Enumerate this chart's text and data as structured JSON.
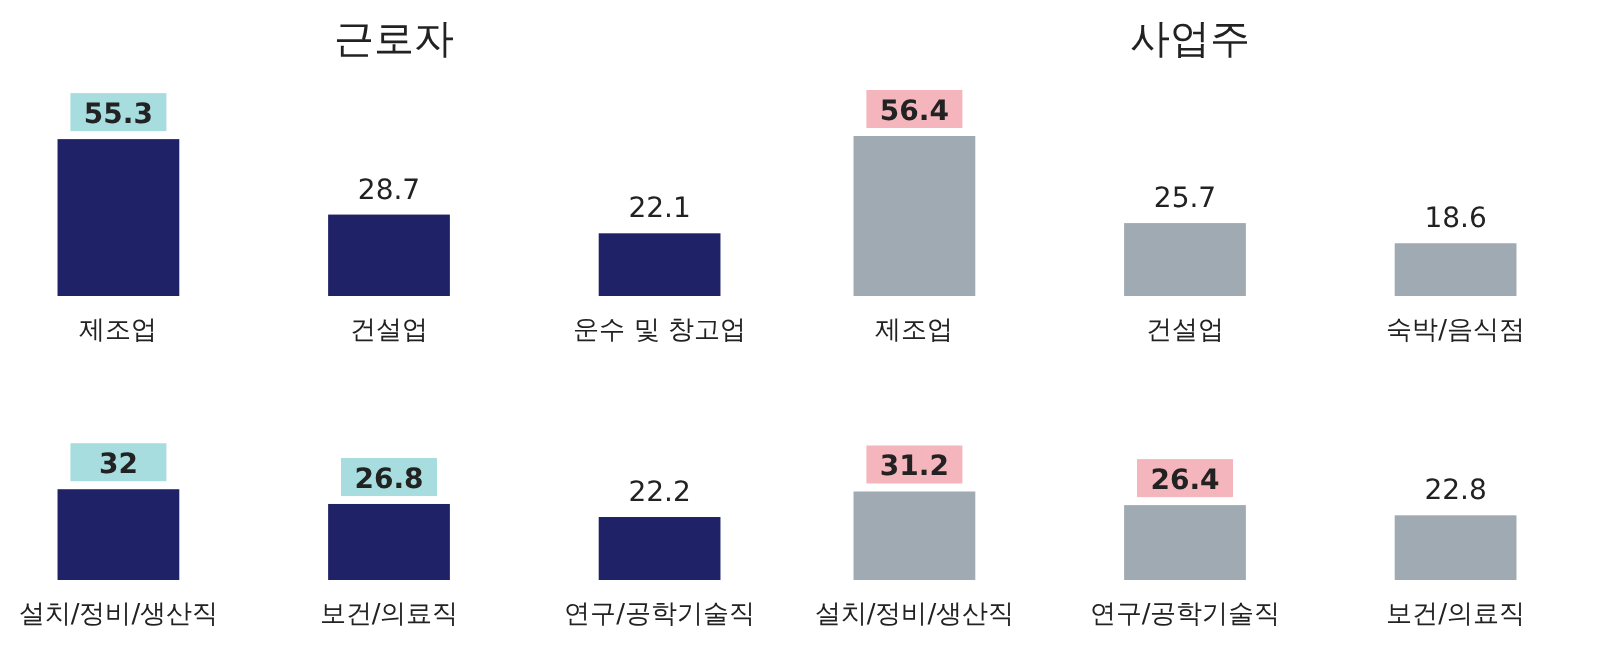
{
  "chart_data": [
    {
      "type": "bar",
      "title": "근로자",
      "categories": [
        "제조업",
        "건설업",
        "운수 및 창고업"
      ],
      "values": [
        55.3,
        28.7,
        22.1
      ],
      "color": "#1f2266",
      "data_labels": true
    },
    {
      "type": "bar",
      "title": "사업주",
      "categories": [
        "제조업",
        "건설업",
        "숙박/음식점"
      ],
      "values": [
        56.4,
        25.7,
        18.6
      ],
      "color": "#a0aab2",
      "data_labels": true
    },
    {
      "type": "bar",
      "categories": [
        "설치/정비/생산직",
        "보건/의료직",
        "연구/공학기술직"
      ],
      "values": [
        32,
        26.8,
        22.2
      ],
      "color": "#1f2266",
      "data_labels": true
    },
    {
      "type": "bar",
      "categories": [
        "설치/정비/생산직",
        "연구/공학기술직",
        "보건/의료직"
      ],
      "values": [
        31.2,
        26.4,
        22.8
      ],
      "color": "#a0aab2",
      "data_labels": true
    }
  ]
}
